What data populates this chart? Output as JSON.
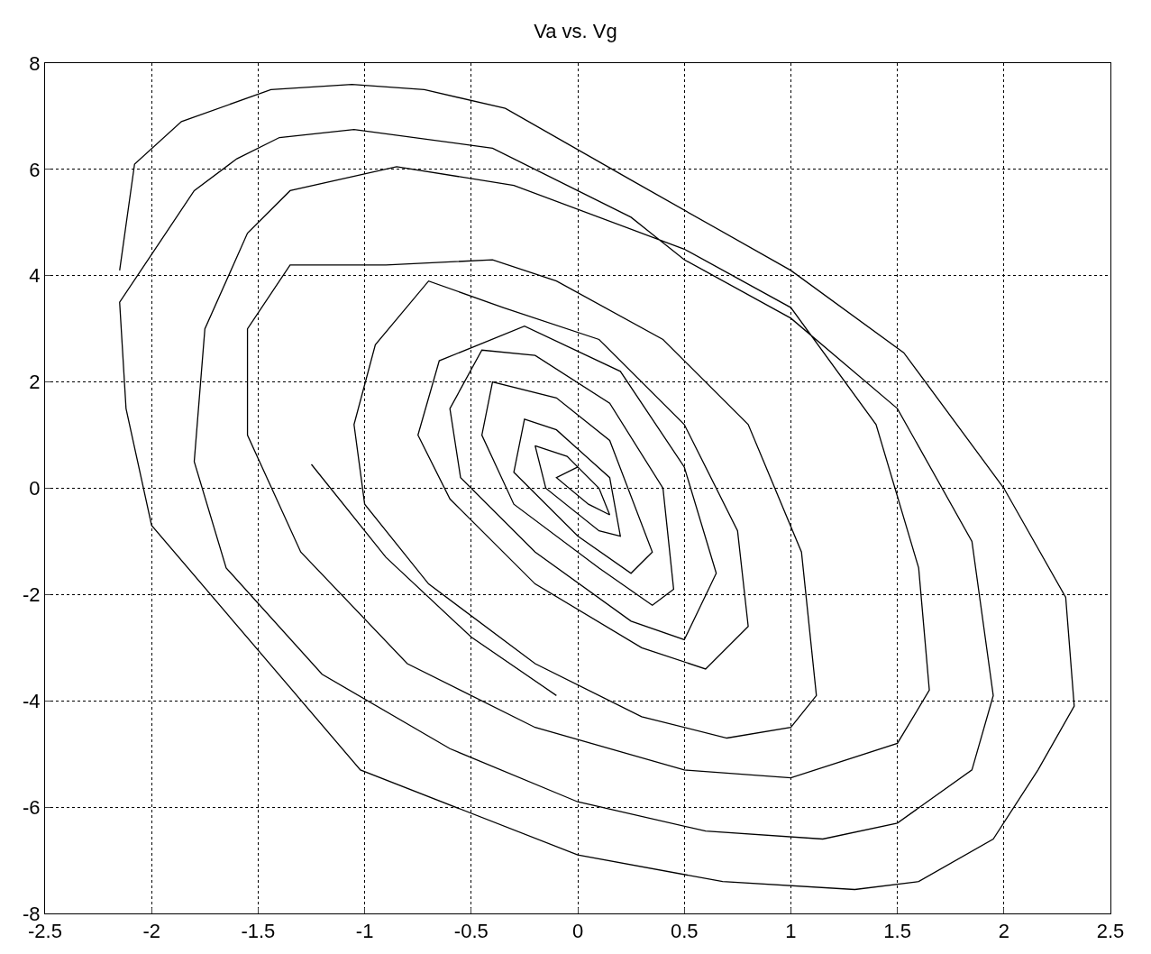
{
  "chart_data": {
    "type": "line",
    "title": "Va vs. Vg",
    "x": [
      -1.25,
      -0.9,
      -0.5,
      -0.1,
      null,
      -2.15,
      -2.08,
      -1.86,
      -1.44,
      -1.06,
      -0.72,
      -0.34,
      0.25,
      1,
      1.53,
      2,
      2.29,
      2.33,
      2.16,
      1.95,
      1.6,
      1.3,
      0.68,
      0,
      -1.02,
      -2,
      -2.12,
      -2.15,
      -1.8,
      -1.6,
      -1.4,
      -1.05,
      -0.4,
      0.25,
      0.5,
      1,
      1.5,
      1.85,
      1.95,
      1.85,
      1.5,
      1.15,
      0.6,
      0,
      -0.6,
      -1.2,
      -1.65,
      -1.8,
      -1.75,
      -1.55,
      -1.35,
      -0.85,
      -0.3,
      0.5,
      1,
      1.4,
      1.6,
      1.65,
      1.5,
      1,
      0.5,
      -0.2,
      -0.8,
      -1.3,
      -1.55,
      -1.55,
      -1.35,
      -0.9,
      -0.4,
      -0.1,
      0.4,
      0.8,
      1.05,
      1.12,
      1,
      0.7,
      0.3,
      -0.2,
      -0.7,
      -1,
      -1.05,
      -0.95,
      -0.7,
      -0.35,
      0.1,
      0.5,
      0.75,
      0.8,
      0.6,
      0.3,
      -0.2,
      -0.6,
      -0.75,
      -0.65,
      -0.25,
      0.2,
      0.5,
      0.65,
      0.5,
      0.25,
      -0.2,
      -0.55,
      -0.6,
      -0.45,
      -0.2,
      0.15,
      0.4,
      0.45,
      0.35,
      0.1,
      -0.3,
      -0.45,
      -0.4,
      -0.1,
      0.15,
      0.35,
      0.25,
      0,
      -0.3,
      -0.25,
      -0.1,
      0.15,
      0.2,
      0.1,
      -0.15,
      -0.2,
      -0.05,
      0.1,
      0.15,
      0.05,
      -0.1,
      0
    ],
    "series": [
      {
        "color": "#000000",
        "values": [
          0.45,
          -1.3,
          -2.8,
          -3.9,
          null,
          4.1,
          6.1,
          6.9,
          7.5,
          7.6,
          7.5,
          7.15,
          5.8,
          4.1,
          2.55,
          0,
          -2.05,
          -4.1,
          -5.3,
          -6.6,
          -7.4,
          -7.55,
          -7.4,
          -6.9,
          -5.3,
          -0.7,
          1.5,
          3.5,
          5.6,
          6.2,
          6.6,
          6.75,
          6.4,
          5.1,
          4.3,
          3.2,
          1.5,
          -1,
          -3.9,
          -5.3,
          -6.3,
          -6.6,
          -6.45,
          -5.9,
          -4.9,
          -3.5,
          -1.5,
          0.5,
          3,
          4.8,
          5.6,
          6.05,
          5.7,
          4.5,
          3.4,
          1.2,
          -1.5,
          -3.8,
          -4.8,
          -5.45,
          -5.3,
          -4.5,
          -3.3,
          -1.2,
          1,
          3,
          4.2,
          4.2,
          4.3,
          3.9,
          2.8,
          1.2,
          -1.2,
          -3.9,
          -4.5,
          -4.7,
          -4.3,
          -3.3,
          -1.8,
          -0.3,
          1.2,
          2.7,
          3.9,
          3.4,
          2.8,
          1.2,
          -0.8,
          -2.6,
          -3.4,
          -3,
          -1.8,
          -0.2,
          1,
          2.4,
          3.05,
          2.2,
          0.4,
          -1.6,
          -2.85,
          -2.5,
          -1.2,
          0.2,
          1.5,
          2.6,
          2.5,
          1.6,
          0,
          -1.9,
          -2.2,
          -1.5,
          -0.3,
          1,
          2,
          1.7,
          0.9,
          -1.2,
          -1.6,
          -0.9,
          0.3,
          1.3,
          1.1,
          0.2,
          -0.9,
          -0.8,
          0,
          0.8,
          0.6,
          0,
          -0.5,
          -0.3,
          0.2,
          0.4
        ]
      }
    ],
    "xlim": [
      -2.5,
      2.5
    ],
    "xticks": [
      -2.5,
      -2,
      -1.5,
      -1,
      -0.5,
      0,
      0.5,
      1,
      1.5,
      2,
      2.5
    ],
    "ylim": [
      -8,
      8
    ],
    "yticks": [
      -8,
      -6,
      -4,
      -2,
      0,
      2,
      4,
      6,
      8
    ],
    "grid": true,
    "marker": "none",
    "line_style": "solid",
    "legend": false
  }
}
